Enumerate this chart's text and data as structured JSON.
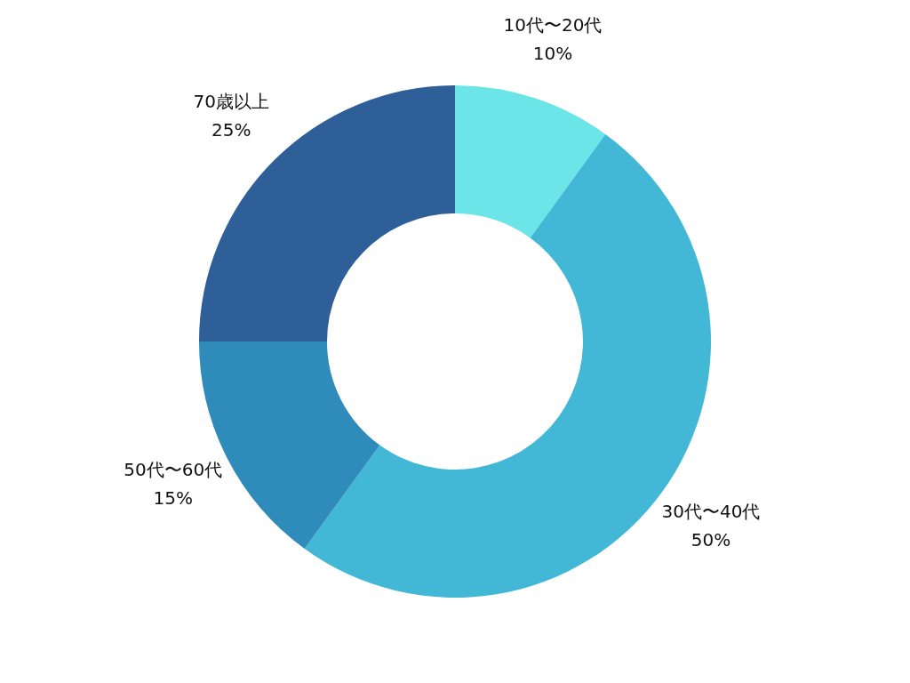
{
  "chart_data": {
    "type": "donut",
    "categories": [
      "10代〜20代",
      "30代〜40代",
      "50代〜60代",
      "70歳以上"
    ],
    "values": [
      10,
      50,
      15,
      25
    ],
    "value_labels": [
      "10%",
      "50%",
      "15%",
      "25%"
    ],
    "colors": [
      "#6be5e8",
      "#42b7d6",
      "#2e8bba",
      "#2e5f98"
    ],
    "legend": false
  }
}
